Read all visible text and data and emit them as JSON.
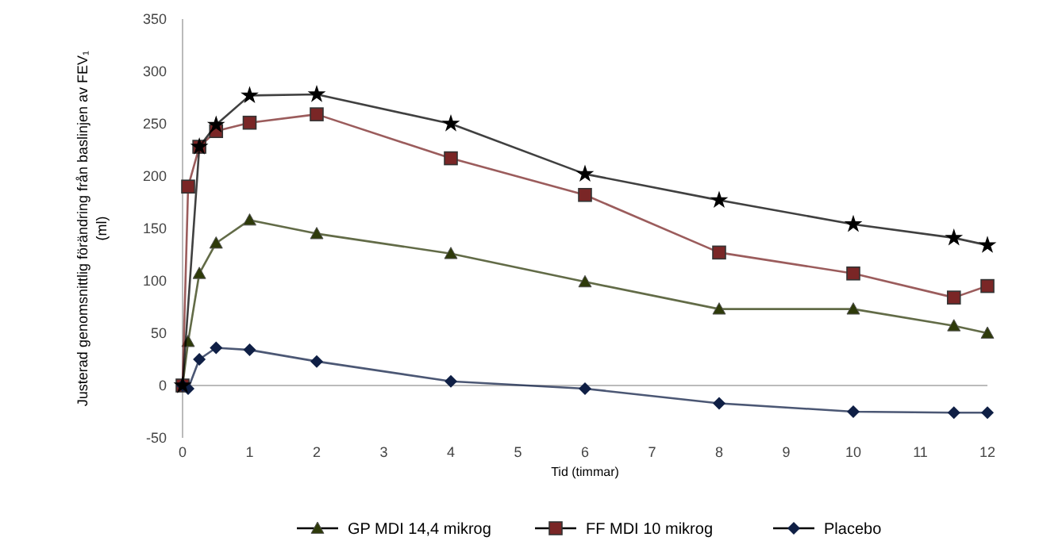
{
  "chart_data": {
    "type": "line",
    "xlabel": "Tid (timmar)",
    "ylabel": "Justerad  genomsnittlig förändring från baslinjen av FEV₁ (ml)",
    "xlim": [
      0,
      12
    ],
    "xticks": [
      0,
      1,
      2,
      3,
      4,
      5,
      6,
      7,
      8,
      9,
      10,
      11,
      12
    ],
    "ylim": [
      -50,
      350
    ],
    "yticks": [
      -50,
      0,
      50,
      100,
      150,
      200,
      250,
      300,
      350
    ],
    "ref_lines": [
      {
        "axis": "y",
        "value": 0,
        "color": "#bbbbbb"
      }
    ],
    "legend": "bottom",
    "series": [
      {
        "marker": "star",
        "color": "#000000",
        "x": [
          0,
          0.083,
          0.25,
          0.5,
          1,
          2,
          4,
          6,
          8,
          10,
          11.5,
          12
        ],
        "values": [
          0,
          null,
          228,
          249,
          277,
          278,
          250,
          202,
          177,
          154,
          141,
          134
        ]
      },
      {
        "name": "GP MDI 14,4 mikrog",
        "marker": "triangle",
        "color": "#2e3a0a",
        "x": [
          0,
          0.083,
          0.25,
          0.5,
          1,
          2,
          4,
          6,
          8,
          10,
          11.5,
          12
        ],
        "values": [
          0,
          42,
          107,
          136,
          158,
          145,
          126,
          99,
          73,
          73,
          57,
          50
        ]
      },
      {
        "name": "FF MDI 10 mikrog",
        "marker": "square",
        "color": "#7a2626",
        "x": [
          0,
          0.083,
          0.25,
          0.5,
          1,
          2,
          4,
          6,
          8,
          10,
          11.5,
          12
        ],
        "values": [
          0,
          190,
          228,
          243,
          251,
          259,
          217,
          182,
          127,
          107,
          84,
          95
        ]
      },
      {
        "name": "Placebo",
        "marker": "diamond",
        "color": "#0f1f45",
        "x": [
          0,
          0.083,
          0.25,
          0.5,
          1,
          2,
          4,
          6,
          8,
          10,
          11.5,
          12
        ],
        "values": [
          0,
          -3,
          25,
          36,
          34,
          23,
          4,
          -3,
          -17,
          -25,
          -26,
          -26
        ]
      }
    ]
  }
}
